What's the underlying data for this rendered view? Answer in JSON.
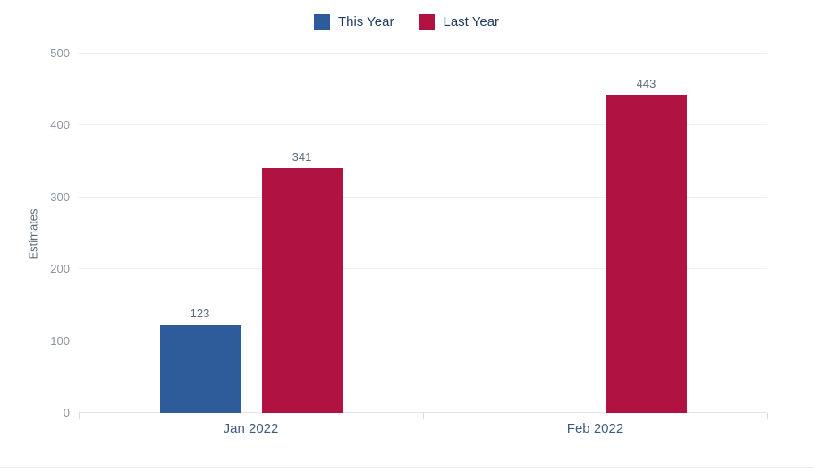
{
  "chart_data": {
    "type": "bar",
    "title": "",
    "categories": [
      "Jan 2022",
      "Feb 2022"
    ],
    "series": [
      {
        "name": "This Year",
        "color": "#2e5c9b",
        "values": [
          123,
          null
        ]
      },
      {
        "name": "Last Year",
        "color": "#b01341",
        "values": [
          341,
          443
        ]
      }
    ],
    "ylabel": "Estimates",
    "xlabel": "",
    "yticks": [
      0,
      100,
      200,
      300,
      400,
      500
    ],
    "ylim": [
      0,
      500
    ],
    "data_labels": true,
    "legend_position": "top-center",
    "grid": "horizontal"
  },
  "colors": {
    "background": "#ffffff",
    "series_this_year": "#2e5c9b",
    "series_last_year": "#b01341",
    "gridline": "#efefef",
    "axis_line": "#e4e4e4",
    "tick_mark": "#d8d8d8",
    "y_tick_text": "#8b95a1",
    "x_tick_text": "#3f5c7c",
    "value_label_text": "#5d6b79",
    "legend_text": "#1d3a5e",
    "axis_title_text": "#5b6b7b",
    "bottom_divider": "#ececec"
  }
}
